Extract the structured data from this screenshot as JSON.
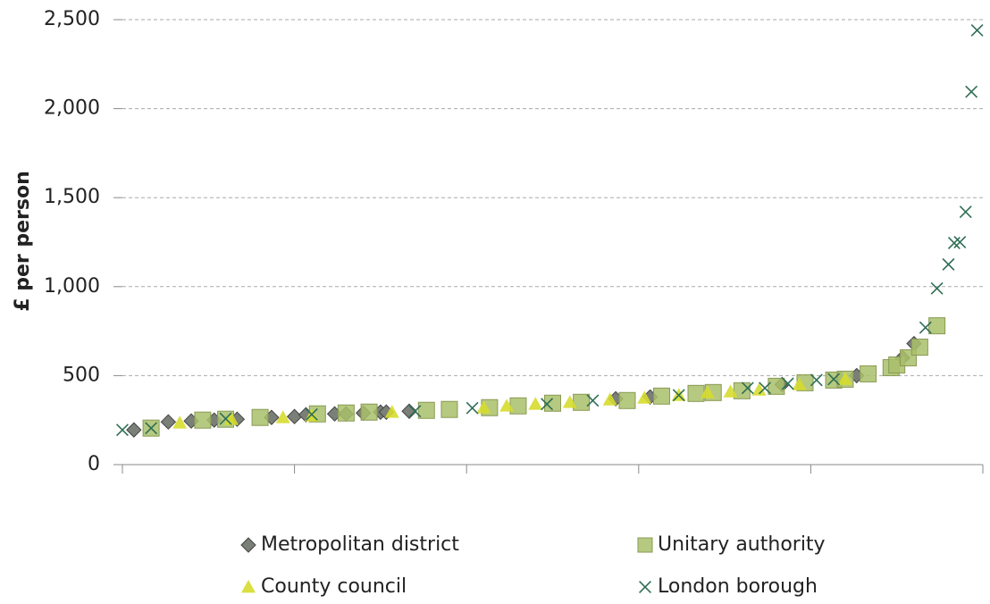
{
  "chart_data": {
    "type": "scatter",
    "y_label": "£ per person",
    "xlim": [
      0,
      150
    ],
    "xticks": [
      0,
      30,
      60,
      90,
      120,
      150
    ],
    "ylim": [
      0,
      2500
    ],
    "yticks": [
      0,
      500,
      {
        "value": 1000,
        "label": "1,000"
      },
      {
        "value": 1500,
        "label": "1,500"
      },
      {
        "value": 2000,
        "label": "2,000"
      },
      {
        "value": 2500,
        "label": "2,500"
      }
    ],
    "grid": true,
    "legend": "bottom",
    "series": [
      {
        "name": "Metropolitan district",
        "marker": "diamond",
        "color": "#7a7f78",
        "x": [
          2,
          8,
          12,
          16,
          20,
          26,
          30,
          32,
          37,
          39,
          42,
          45,
          46,
          50,
          86,
          92,
          115,
          128,
          136,
          138
        ],
        "values": [
          195,
          240,
          245,
          250,
          255,
          265,
          270,
          280,
          285,
          285,
          290,
          295,
          295,
          300,
          370,
          380,
          450,
          500,
          600,
          680
        ]
      },
      {
        "name": "Unitary authority",
        "marker": "square",
        "color": "#a9c06a",
        "x": [
          5,
          14,
          18,
          24,
          34,
          39,
          43,
          53,
          57,
          64,
          69,
          75,
          80,
          88,
          94,
          100,
          103,
          108,
          114,
          119,
          124,
          126,
          130,
          134,
          135,
          137,
          139,
          142
        ],
        "values": [
          205,
          250,
          255,
          265,
          285,
          290,
          295,
          305,
          310,
          320,
          330,
          345,
          350,
          360,
          385,
          400,
          405,
          415,
          440,
          460,
          475,
          480,
          510,
          545,
          560,
          600,
          660,
          780
        ]
      },
      {
        "name": "County council",
        "marker": "triangle",
        "color": "#d6dc2e",
        "x": [
          10,
          19,
          28,
          33,
          47,
          63,
          67,
          72,
          78,
          85,
          91,
          97,
          102,
          106,
          111,
          118,
          126
        ],
        "values": [
          235,
          255,
          265,
          275,
          295,
          320,
          330,
          340,
          350,
          365,
          375,
          390,
          405,
          410,
          420,
          450,
          480
        ]
      },
      {
        "name": "London borough",
        "marker": "x",
        "color": "#2f6e55",
        "x": [
          0,
          5,
          18,
          33,
          51,
          61,
          74,
          82,
          97,
          109,
          112,
          116,
          121,
          124,
          140,
          142,
          144,
          145,
          146,
          147,
          148,
          149
        ],
        "values": [
          195,
          205,
          258,
          282,
          300,
          318,
          340,
          360,
          390,
          430,
          430,
          455,
          475,
          480,
          770,
          990,
          1125,
          1245,
          1250,
          1420,
          2095,
          2440
        ]
      }
    ]
  }
}
